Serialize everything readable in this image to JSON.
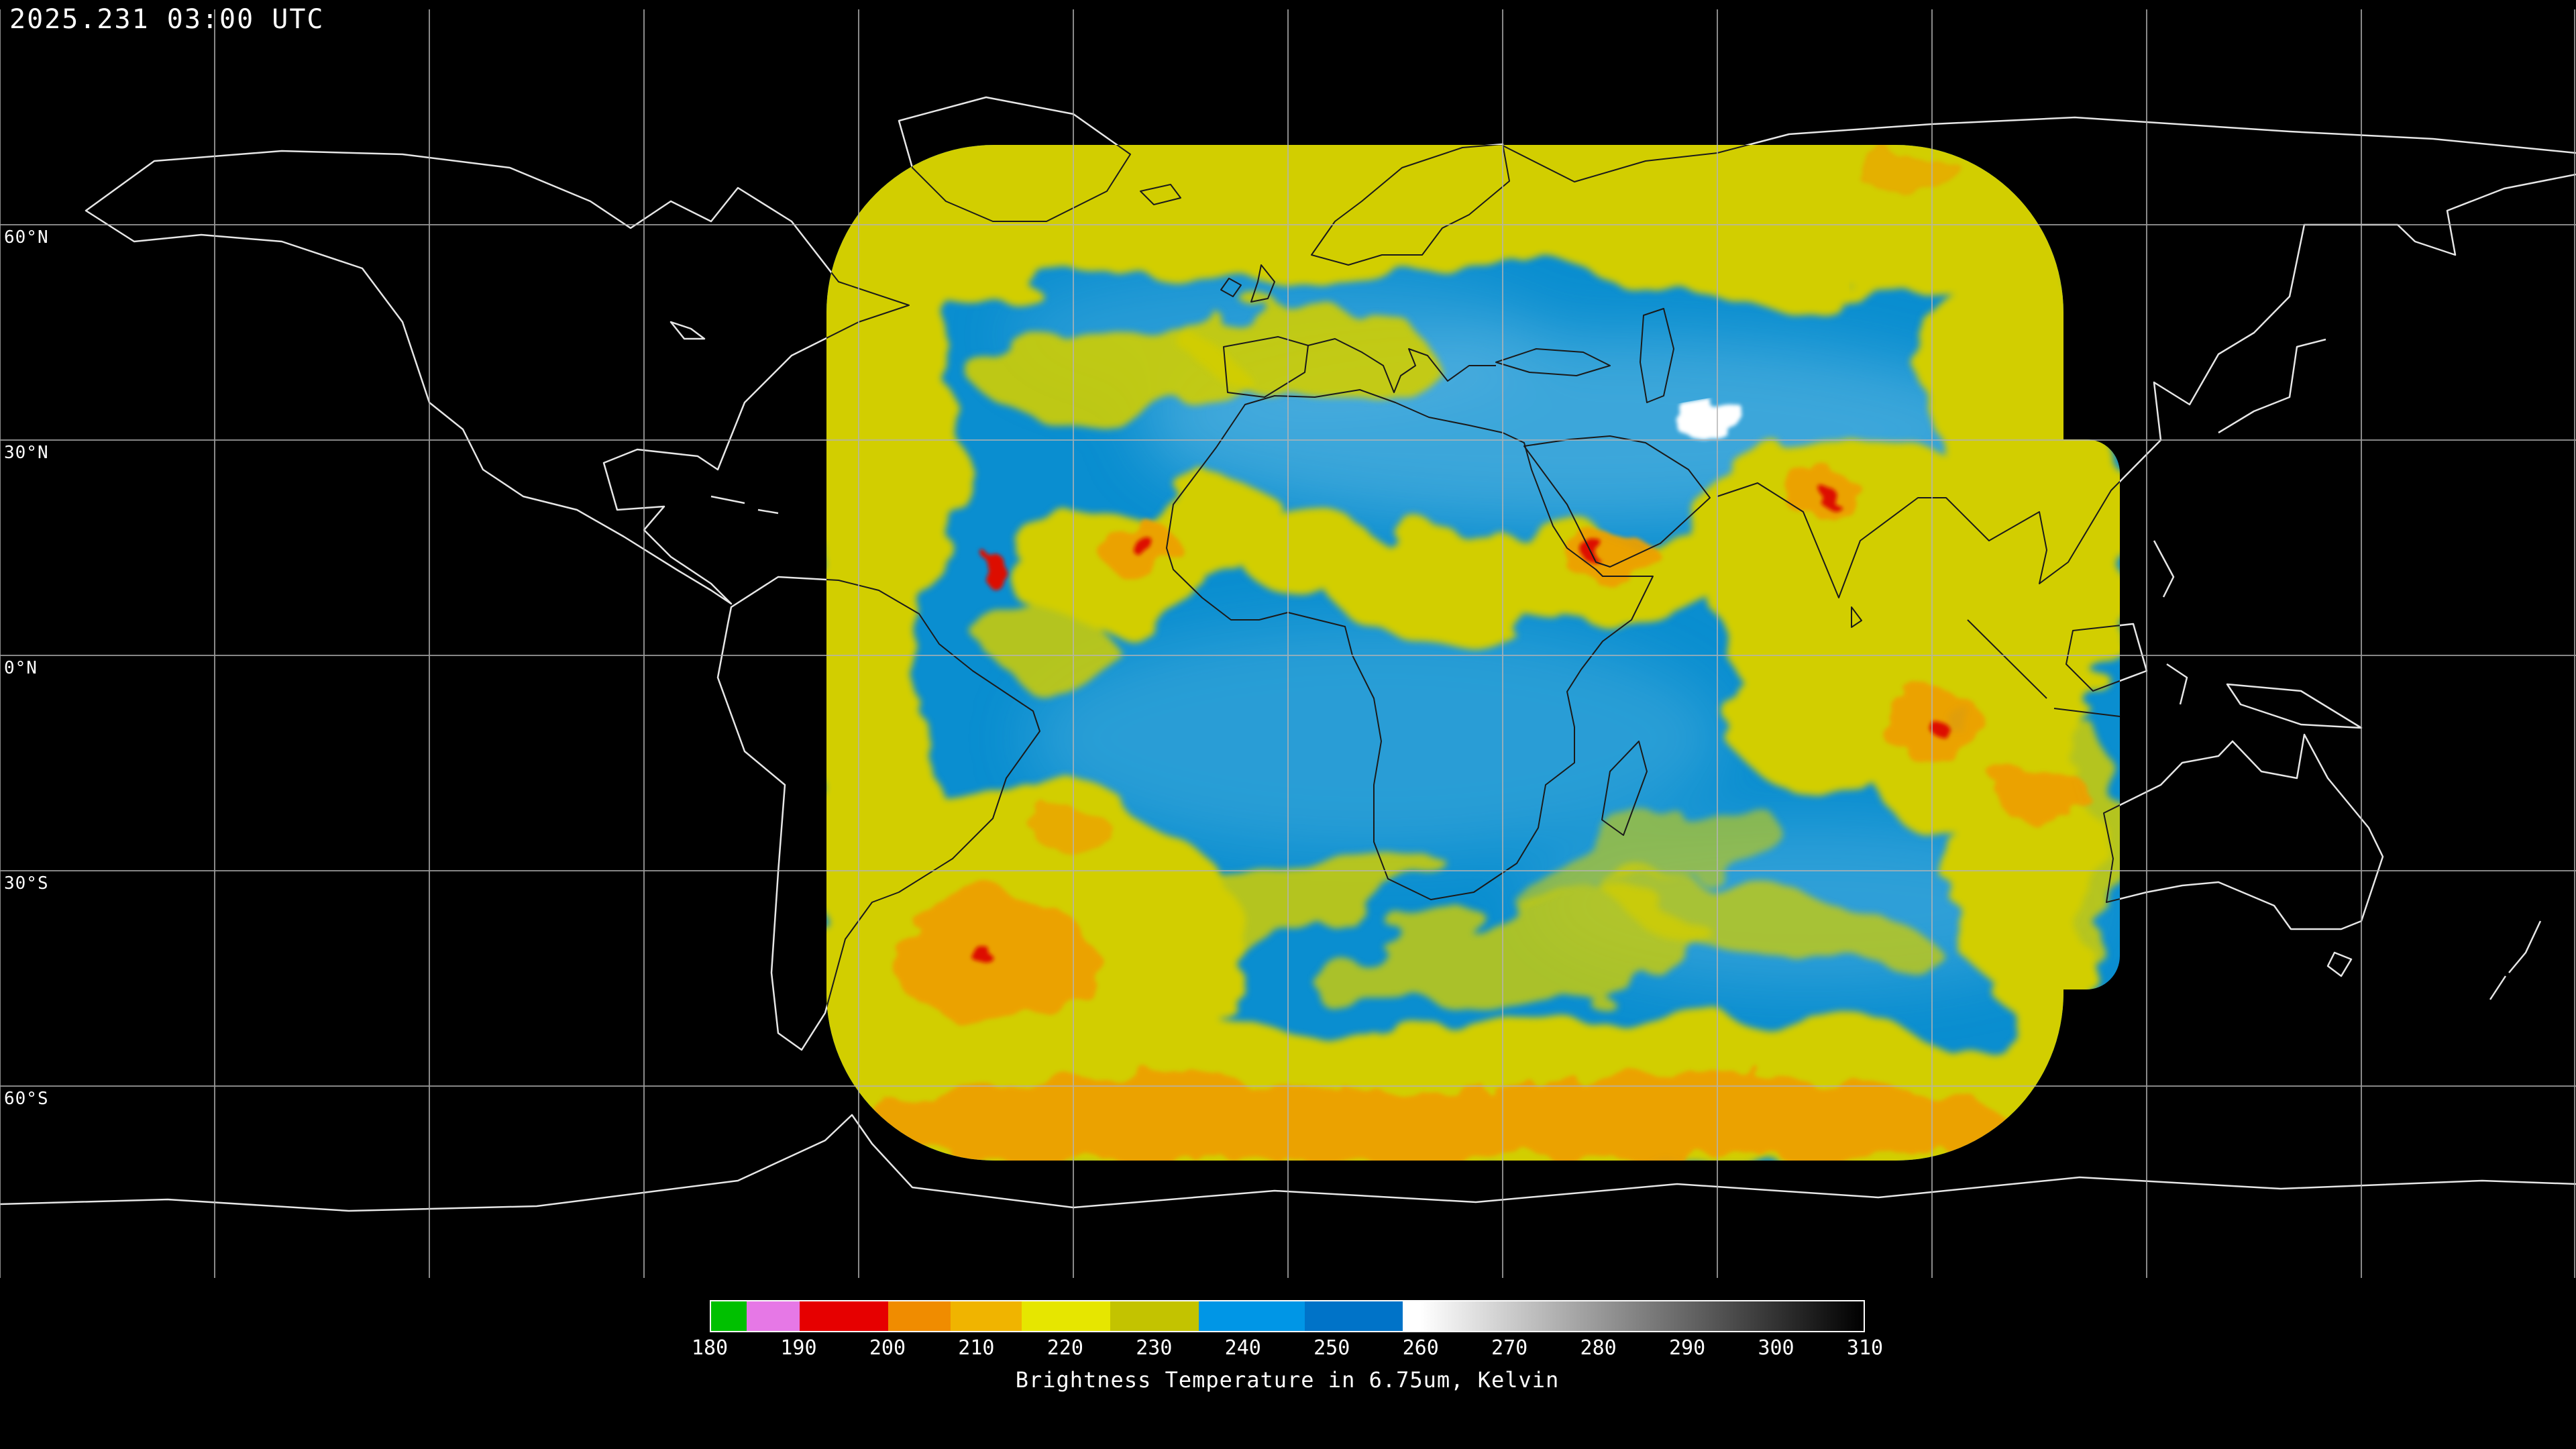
{
  "header": {
    "timestamp": "2025.231 03:00 UTC"
  },
  "map": {
    "latitude_labels": [
      "60°N",
      "30°N",
      "0°N",
      "30°S",
      "60°S"
    ],
    "graticule_interval_degrees": 30
  },
  "colorbar": {
    "min": 180,
    "max": 310,
    "ticks": [
      180,
      190,
      200,
      210,
      220,
      230,
      240,
      250,
      260,
      270,
      280,
      290,
      300,
      310
    ],
    "title": "Brightness Temperature in 6.75um, Kelvin",
    "segments": [
      {
        "from": 180,
        "to": 184,
        "color": "#00c000"
      },
      {
        "from": 184,
        "to": 190,
        "color": "#e678e6"
      },
      {
        "from": 190,
        "to": 200,
        "color": "#e60000"
      },
      {
        "from": 200,
        "to": 207,
        "color": "#f08c00"
      },
      {
        "from": 207,
        "to": 215,
        "color": "#f0b400"
      },
      {
        "from": 215,
        "to": 225,
        "color": "#e6e600"
      },
      {
        "from": 225,
        "to": 235,
        "color": "#c3c300"
      },
      {
        "from": 235,
        "to": 247,
        "color": "#0096e6"
      },
      {
        "from": 247,
        "to": 258,
        "color": "#0073c8"
      },
      {
        "from": 258,
        "to": 260,
        "color": "#ffffff"
      },
      {
        "from": 260,
        "to": 310,
        "gradient": [
          "#ffffff",
          "#000000"
        ]
      }
    ]
  },
  "colors": {
    "background": "#000000",
    "coastline": "#e6e6e6",
    "coastline_in_swath": "#1a1a1a",
    "graticule": "#b4b4b4",
    "swath_clear_blue": "#0a8ed0",
    "cloud_yellow": "#d2ce00",
    "cloud_orange": "#eda000",
    "cloud_red": "#dd1000",
    "cloud_white": "#ffffff"
  }
}
